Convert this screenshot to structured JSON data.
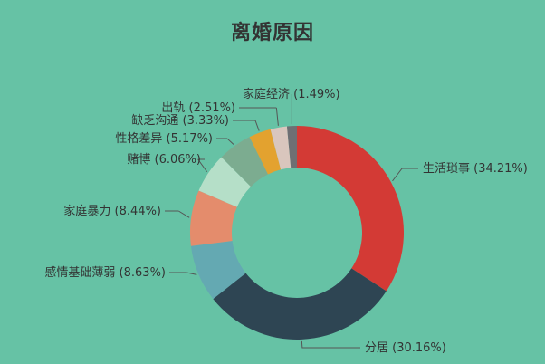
{
  "chart_data": {
    "type": "pie",
    "variant": "donut",
    "title": "离婚原因",
    "sort": "descending clockwise from top",
    "slices": [
      {
        "label": "生活琐事",
        "value": 34.21,
        "display": "生活琐事 (34.21%)",
        "color": "#d33a35"
      },
      {
        "label": "分居",
        "value": 30.16,
        "display": "分居 (30.16%)",
        "color": "#2e4553"
      },
      {
        "label": "感情基础薄弱",
        "value": 8.63,
        "display": "感情基础薄弱 (8.63%)",
        "color": "#64a9b2"
      },
      {
        "label": "家庭暴力",
        "value": 8.44,
        "display": "家庭暴力 (8.44%)",
        "color": "#e48c6c"
      },
      {
        "label": "赌博",
        "value": 6.06,
        "display": "赌博 (6.06%)",
        "color": "#b5dfc8"
      },
      {
        "label": "性格差异",
        "value": 5.17,
        "display": "性格差异 (5.17%)",
        "color": "#7cac90"
      },
      {
        "label": "缺乏沟通",
        "value": 3.33,
        "display": "缺乏沟通 (3.33%)",
        "color": "#e3a22f"
      },
      {
        "label": "出轨",
        "value": 2.51,
        "display": "出轨 (2.51%)",
        "color": "#d9c6bd"
      },
      {
        "label": "家庭经济",
        "value": 1.49,
        "display": "家庭经济 (1.49%)",
        "color": "#6e6f73"
      }
    ],
    "legend": "none"
  }
}
